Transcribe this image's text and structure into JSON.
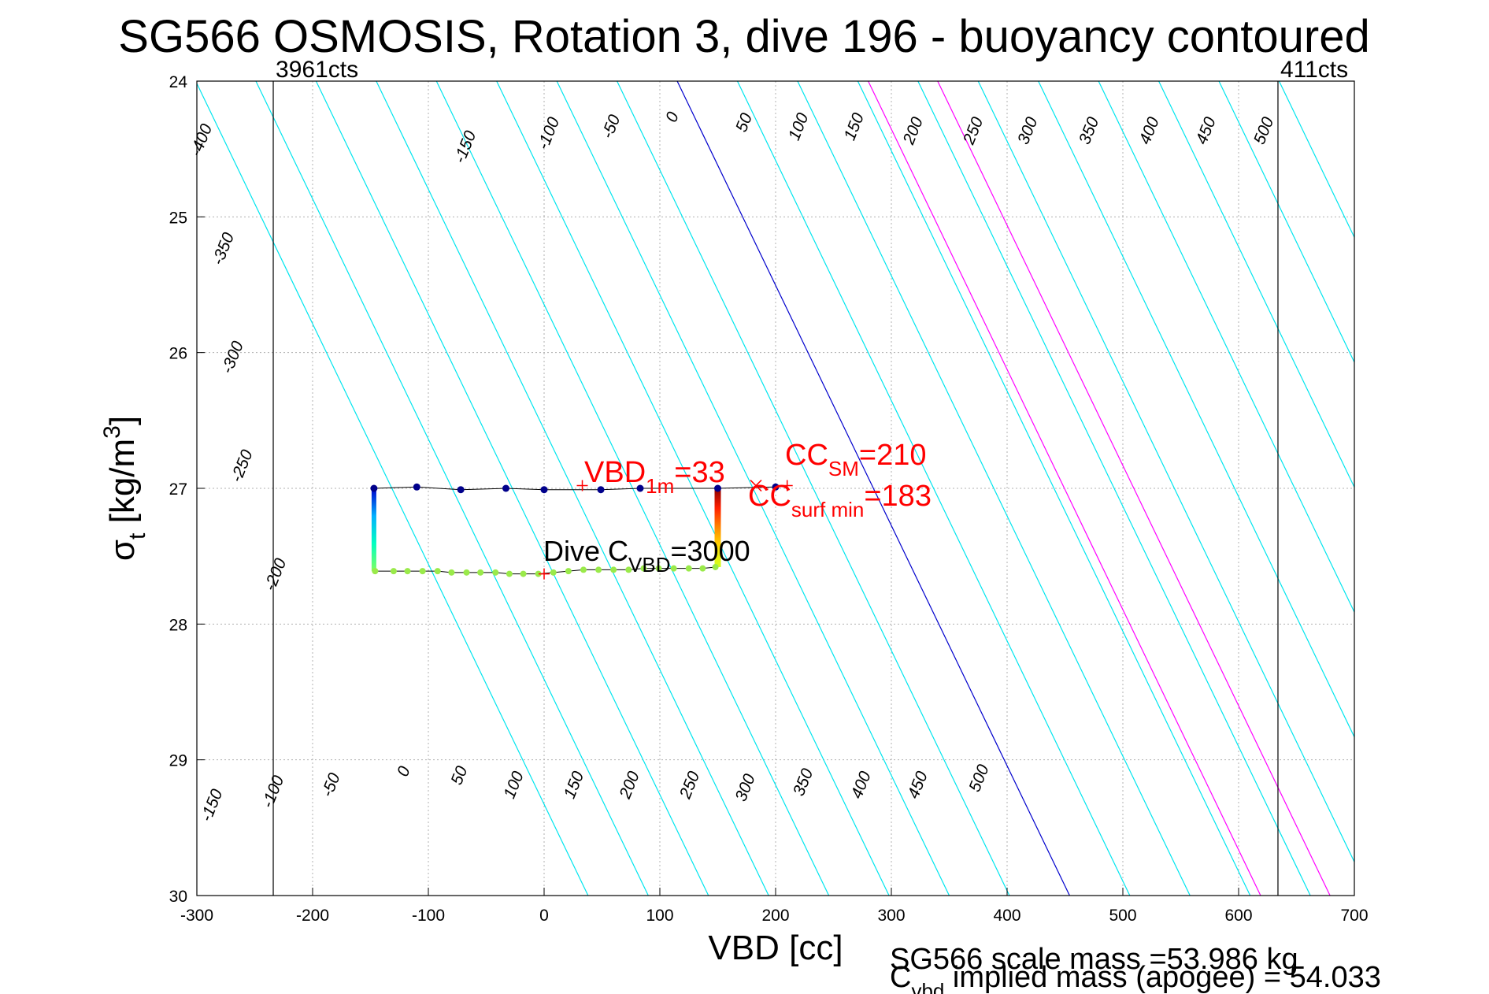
{
  "chart_data": {
    "type": "line",
    "title": "SG566 OSMOSIS, Rotation 3, dive 196 - buoyancy contoured",
    "xlabel": "VBD [cc]",
    "ylabel_main": "σ",
    "ylabel_sub": "t",
    "ylabel_rest": " [kg/m",
    "ylabel_sup": "3",
    "ylabel_end": "]",
    "xlim": [
      -300,
      700
    ],
    "ylim": [
      24,
      30
    ],
    "y_reversed": true,
    "xticks": [
      -300,
      -200,
      -100,
      0,
      100,
      200,
      300,
      400,
      500,
      600,
      700
    ],
    "yticks": [
      24,
      25,
      26,
      27,
      28,
      29,
      30
    ],
    "grid": true,
    "vlines": [
      {
        "x": -234,
        "label": "3961cts"
      },
      {
        "x": 634,
        "label": "411cts"
      }
    ],
    "contour_slope_cc_per_kgm3": 56.5,
    "contours_cyan": [
      -400,
      -350,
      -300,
      -250,
      -200,
      -150,
      -100,
      -50,
      50,
      100,
      150,
      200,
      250,
      300,
      350,
      400,
      450,
      500
    ],
    "contour_blue": 0,
    "contours_magenta": [
      {
        "vbd_at_sigma24": 280
      },
      {
        "vbd_at_sigma24": 340
      }
    ],
    "contour_labels_top": [
      {
        "value": "-400",
        "x": -292,
        "y": 24.45
      },
      {
        "value": "-350",
        "x": -273,
        "y": 25.25
      },
      {
        "value": "-300",
        "x": -265,
        "y": 26.05
      },
      {
        "value": "-250",
        "x": -257,
        "y": 26.85
      },
      {
        "value": "-200",
        "x": -228,
        "y": 27.65
      },
      {
        "value": "-150",
        "x": -64,
        "y": 24.5
      },
      {
        "value": "-100",
        "x": 8,
        "y": 24.4
      },
      {
        "value": "-50",
        "x": 62,
        "y": 24.35
      },
      {
        "value": "0",
        "x": 115,
        "y": 24.28
      },
      {
        "value": "50",
        "x": 177,
        "y": 24.32
      },
      {
        "value": "100",
        "x": 224,
        "y": 24.35
      },
      {
        "value": "150",
        "x": 272,
        "y": 24.35
      },
      {
        "value": "200",
        "x": 323,
        "y": 24.38
      },
      {
        "value": "250",
        "x": 375,
        "y": 24.38
      },
      {
        "value": "300",
        "x": 422,
        "y": 24.38
      },
      {
        "value": "350",
        "x": 475,
        "y": 24.38
      },
      {
        "value": "400",
        "x": 527,
        "y": 24.38
      },
      {
        "value": "450",
        "x": 576,
        "y": 24.38
      },
      {
        "value": "500",
        "x": 626,
        "y": 24.38
      }
    ],
    "contour_labels_bottom": [
      {
        "value": "-150",
        "x": -283,
        "y": 29.35
      },
      {
        "value": "-100",
        "x": -230,
        "y": 29.25
      },
      {
        "value": "-50",
        "x": -180,
        "y": 29.2
      },
      {
        "value": "0",
        "x": -117,
        "y": 29.1
      },
      {
        "value": "50",
        "x": -69,
        "y": 29.13
      },
      {
        "value": "100",
        "x": -22,
        "y": 29.2
      },
      {
        "value": "150",
        "x": 30,
        "y": 29.2
      },
      {
        "value": "200",
        "x": 78,
        "y": 29.2
      },
      {
        "value": "250",
        "x": 130,
        "y": 29.2
      },
      {
        "value": "300",
        "x": 178,
        "y": 29.22
      },
      {
        "value": "350",
        "x": 228,
        "y": 29.18
      },
      {
        "value": "400",
        "x": 278,
        "y": 29.2
      },
      {
        "value": "450",
        "x": 327,
        "y": 29.2
      },
      {
        "value": "500",
        "x": 380,
        "y": 29.15
      }
    ],
    "series": [
      {
        "points_vbd": [
          -147,
          -110,
          -72,
          -33,
          0,
          49,
          83,
          150,
          200
        ],
        "points_sigma": [
          27.0,
          26.99,
          27.01,
          27.0,
          27.01,
          27.01,
          27.0,
          27.0,
          26.99
        ],
        "line_color": "#000000",
        "marker_color": "#00008b"
      },
      {
        "points_vbd": [
          -146,
          -130,
          -118,
          -105,
          -92,
          -80,
          -67,
          -55,
          -42,
          -30,
          -18,
          -5,
          8,
          21,
          34,
          47,
          60,
          73,
          86,
          99,
          112,
          125,
          137,
          148
        ],
        "points_sigma": [
          27.61,
          27.61,
          27.61,
          27.61,
          27.61,
          27.62,
          27.62,
          27.62,
          27.62,
          27.63,
          27.63,
          27.63,
          27.62,
          27.61,
          27.6,
          27.6,
          27.6,
          27.6,
          27.59,
          27.59,
          27.59,
          27.59,
          27.59,
          27.58
        ],
        "line_color": "#000000",
        "marker_color": "#9aea4a"
      }
    ],
    "vertical_left": {
      "x": -147,
      "sigma_top": 27.0,
      "sigma_bottom": 27.61,
      "colors": [
        "#0000cc",
        "#00b0ff",
        "#00ffc0",
        "#80ff60"
      ]
    },
    "vertical_right": {
      "x": 150,
      "sigma_top": 27.0,
      "sigma_bottom": 27.58,
      "colors": [
        "#8b0000",
        "#ff2000",
        "#ff8800",
        "#ffe000",
        "#d0ff20"
      ]
    },
    "markers": [
      {
        "x": 33,
        "y": 26.98,
        "symbol": "+",
        "color": "#ff0000"
      },
      {
        "x": 183,
        "y": 26.98,
        "symbol": "x",
        "color": "#ff0000"
      },
      {
        "x": 210,
        "y": 26.98,
        "symbol": "+",
        "color": "#ff0000"
      },
      {
        "x": 0,
        "y": 27.63,
        "symbol": "+",
        "color": "#ff0000"
      }
    ],
    "annotations": {
      "vbd1m": {
        "main": "VBD",
        "sub": "1m",
        "rest": "=33",
        "color": "#ff0000"
      },
      "ccsm": {
        "main": "CC",
        "sub": "SM",
        "rest": "=210",
        "color": "#ff0000"
      },
      "ccsurf": {
        "main": "CC",
        "sub": "surf min",
        "rest": "=183",
        "color": "#ff0000"
      },
      "dive": {
        "main": "Dive C",
        "sub": "VBD",
        "rest": "=3000",
        "color": "#000000"
      }
    },
    "footer_line1": "SG566 scale mass =53.986 kg",
    "footer_line2_main": "C",
    "footer_line2_sub": "vbd",
    "footer_line2_rest": " implied mass (apogee) = 54.033"
  },
  "colors": {
    "cyan": "#00e5ee",
    "blue": "#0000cd",
    "magenta": "#ff00ff",
    "grid": "#b0b0b0"
  }
}
